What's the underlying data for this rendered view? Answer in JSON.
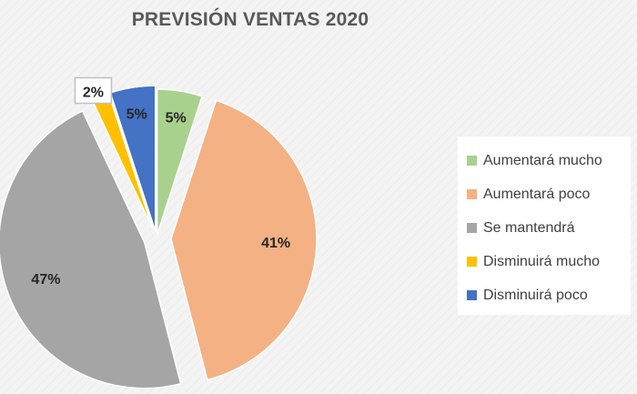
{
  "chart_data": {
    "type": "pie",
    "title": "PREVISIÓN VENTAS 2020",
    "categories": [
      "Aumentará mucho",
      "Aumentará poco",
      "Se mantendrá",
      "Disminuirá mucho",
      "Disminuirá poco"
    ],
    "values": [
      5,
      41,
      47,
      2,
      5
    ],
    "labels": [
      "5%",
      "41%",
      "47%",
      "2%",
      "5%"
    ],
    "colors": [
      "#a9d18e",
      "#f4b183",
      "#a5a5a5",
      "#ffc000",
      "#4472c4"
    ],
    "legend_position": "right"
  }
}
